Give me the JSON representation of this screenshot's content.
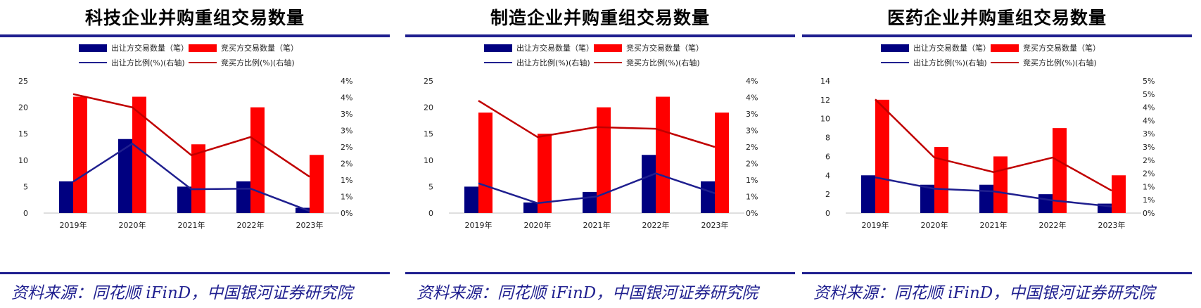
{
  "panels": [
    {
      "title": "科技企业并购重组交易数量",
      "source": "资料来源：同花顺 iFinD，中国银河证券研究院"
    },
    {
      "title": "制造企业并购重组交易数量",
      "source": "资料来源：同花顺 iFinD，中国银河证券研究院"
    },
    {
      "title": "医药企业并购重组交易数量",
      "source": "资料来源：同花顺 iFinD，中国银河证券研究院"
    }
  ],
  "colors": {
    "seller": "#000080",
    "buyer": "#ff0000",
    "seller_line": "#1f1f8f",
    "buyer_line": "#c00000",
    "rule": "#1f1f8f"
  },
  "chart_data": [
    {
      "type": "bar+line",
      "categories": [
        "2019年",
        "2020年",
        "2021年",
        "2022年",
        "2023年"
      ],
      "legend": [
        "出让方交易数量（笔）",
        "竞买方交易数量（笔）",
        "出让方比例(%)(右轴)",
        "竞买方比例(%)(右轴)"
      ],
      "left_ticks": [
        "0",
        "5",
        "10",
        "15",
        "20",
        "25"
      ],
      "right_ticks": [
        "0%",
        "1%",
        "1%",
        "2%",
        "2%",
        "3%",
        "3%",
        "4%",
        "4%"
      ],
      "ylim": [
        0,
        25
      ],
      "y2lim": [
        0,
        4
      ],
      "series": [
        {
          "name": "出让方交易数量（笔）",
          "kind": "bar",
          "values": [
            6,
            14,
            5,
            6,
            1
          ]
        },
        {
          "name": "竞买方交易数量（笔）",
          "kind": "bar",
          "values": [
            22,
            22,
            13,
            20,
            11
          ]
        },
        {
          "name": "出让方比例(%)(右轴)",
          "kind": "line",
          "values": [
            0.95,
            2.1,
            0.72,
            0.74,
            0.06
          ]
        },
        {
          "name": "竞买方比例(%)(右轴)",
          "kind": "line",
          "values": [
            3.6,
            3.2,
            1.75,
            2.3,
            1.1
          ]
        }
      ]
    },
    {
      "type": "bar+line",
      "categories": [
        "2019年",
        "2020年",
        "2021年",
        "2022年",
        "2023年"
      ],
      "legend": [
        "出让方交易数量（笔）",
        "竞买方交易数量（笔）",
        "出让方比例(%)(右轴)",
        "竞买方比例(%)(右轴)"
      ],
      "left_ticks": [
        "0",
        "5",
        "10",
        "15",
        "20",
        "25"
      ],
      "right_ticks": [
        "0%",
        "1%",
        "1%",
        "2%",
        "2%",
        "3%",
        "3%",
        "4%",
        "4%"
      ],
      "ylim": [
        0,
        25
      ],
      "y2lim": [
        0,
        4
      ],
      "series": [
        {
          "name": "出让方交易数量（笔）",
          "kind": "bar",
          "values": [
            5,
            2,
            4,
            11,
            6
          ]
        },
        {
          "name": "竞买方交易数量（笔）",
          "kind": "bar",
          "values": [
            19,
            15,
            20,
            22,
            19
          ]
        },
        {
          "name": "出让方比例(%)(右轴)",
          "kind": "line",
          "values": [
            0.9,
            0.3,
            0.5,
            1.2,
            0.6
          ]
        },
        {
          "name": "竞买方比例(%)(右轴)",
          "kind": "line",
          "values": [
            3.4,
            2.3,
            2.6,
            2.55,
            2.0
          ]
        }
      ]
    },
    {
      "type": "bar+line",
      "categories": [
        "2019年",
        "2020年",
        "2021年",
        "2022年",
        "2023年"
      ],
      "legend": [
        "出让方交易数量（笔）",
        "竞买方交易数量（笔）",
        "出让方比例(%)(右轴)",
        "竞买方比例(%)(右轴)"
      ],
      "left_ticks": [
        "0",
        "2",
        "4",
        "6",
        "8",
        "10",
        "12",
        "14"
      ],
      "right_ticks": [
        "0%",
        "1%",
        "1%",
        "2%",
        "2%",
        "3%",
        "3%",
        "4%",
        "4%",
        "5%",
        "5%"
      ],
      "ylim": [
        0,
        14
      ],
      "y2lim": [
        0,
        5
      ],
      "series": [
        {
          "name": "出让方交易数量（笔）",
          "kind": "bar",
          "values": [
            4,
            3,
            3,
            2,
            1
          ]
        },
        {
          "name": "竞买方交易数量（笔）",
          "kind": "bar",
          "values": [
            12,
            7,
            6,
            9,
            4
          ]
        },
        {
          "name": "出让方比例(%)(右轴)",
          "kind": "line",
          "values": [
            1.35,
            0.92,
            0.82,
            0.48,
            0.25
          ]
        },
        {
          "name": "竞买方比例(%)(右轴)",
          "kind": "line",
          "values": [
            4.3,
            2.1,
            1.55,
            2.1,
            0.85
          ]
        }
      ]
    }
  ]
}
